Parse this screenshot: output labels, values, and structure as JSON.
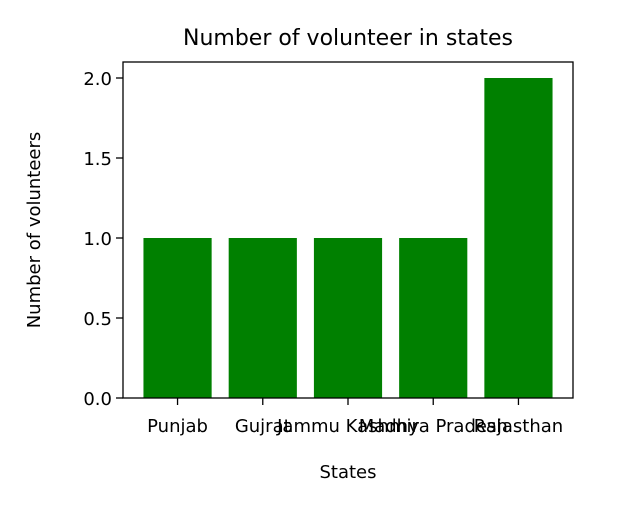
{
  "chart_data": {
    "type": "bar",
    "title": "Number of volunteer in states",
    "xlabel": "States",
    "ylabel": "Number of volunteers",
    "categories": [
      "Punjab",
      "Gujrat",
      "Jammu Kashmir",
      "Madhya Pradesh",
      "Rajasthan"
    ],
    "values": [
      1,
      1,
      1,
      1,
      2
    ],
    "ylim": [
      0,
      2.1
    ],
    "yticks": [
      0.0,
      0.5,
      1.0,
      1.5,
      2.0
    ],
    "ytick_labels": [
      "0.0",
      "0.5",
      "1.0",
      "1.5",
      "2.0"
    ],
    "bar_color": "#008000",
    "grid": false,
    "legend": "none"
  }
}
